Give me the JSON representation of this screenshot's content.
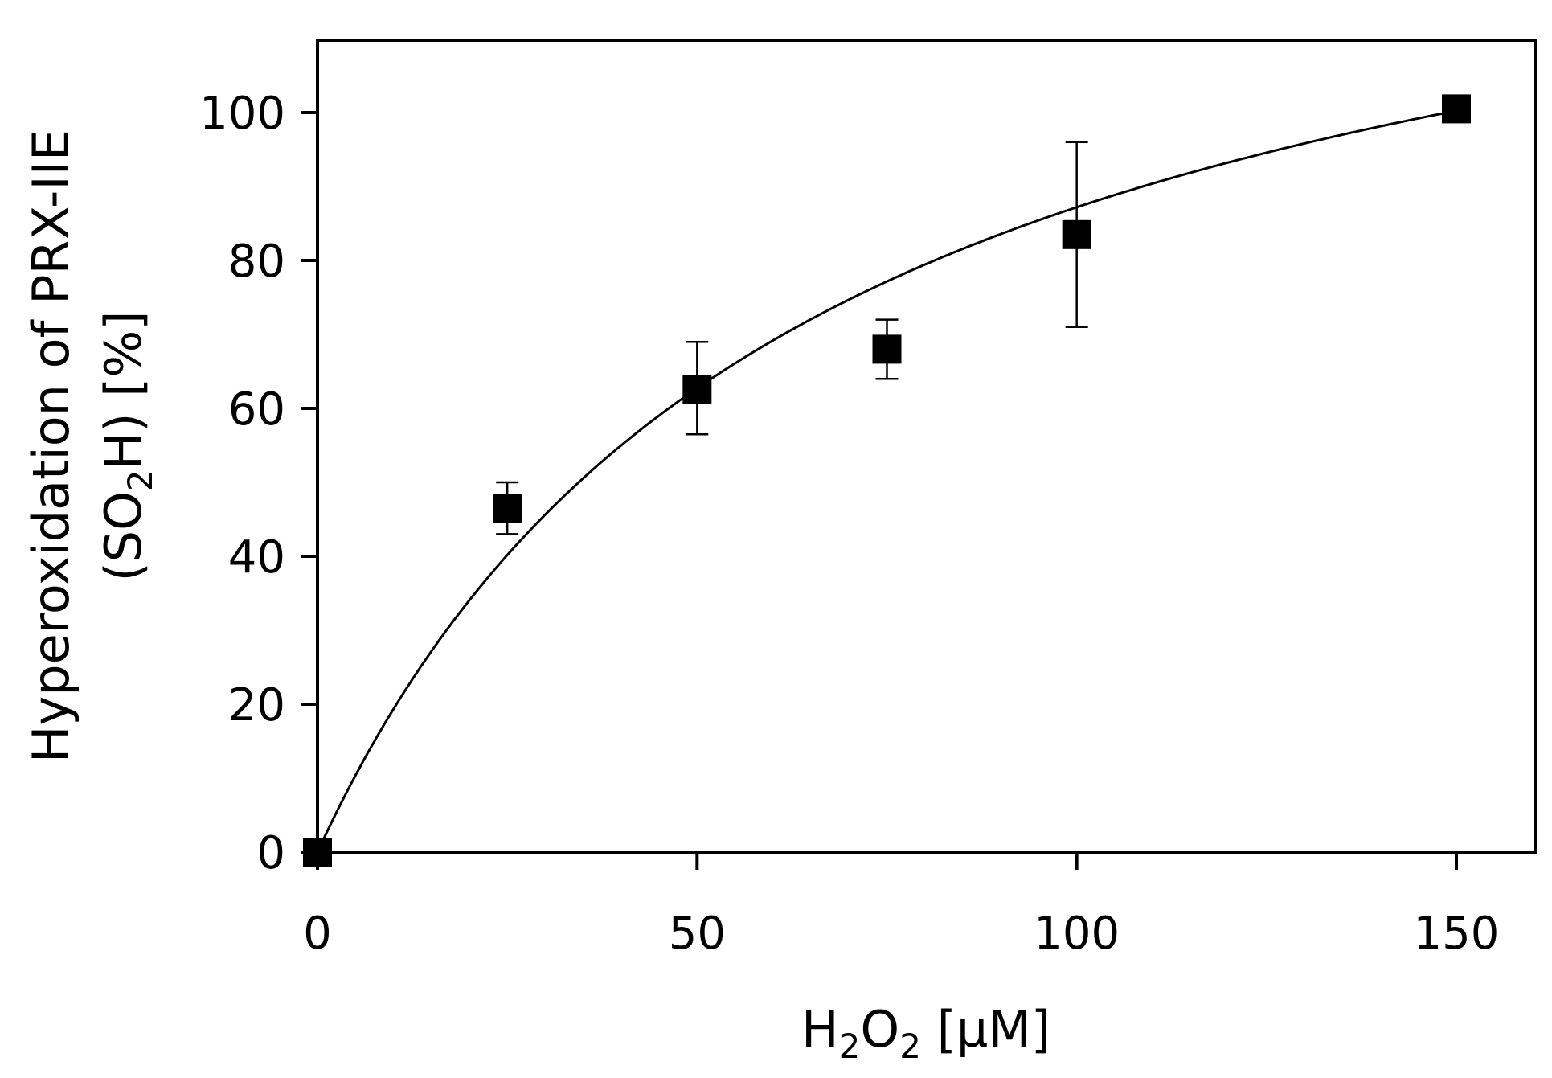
{
  "chart_data": {
    "type": "scatter",
    "title": "",
    "xlabel": {
      "base": "H",
      "sub1": "2",
      "mid": "O",
      "sub2": "2",
      "rest": " [µM]"
    },
    "ylabel": {
      "line1": "Hyperoxidation of PRX-IIE",
      "line2": {
        "pre": "(SO",
        "sub": "2",
        "post": "H) [%]"
      }
    },
    "xlim": [
      0,
      160
    ],
    "ylim": [
      0,
      110
    ],
    "xticks": [
      0,
      50,
      100,
      150
    ],
    "yticks": [
      0,
      20,
      40,
      60,
      80,
      100
    ],
    "grid": false,
    "legend": false,
    "marker": "square",
    "color": "#000000",
    "points": [
      {
        "x": 0,
        "y": 0,
        "err_low": 0,
        "err_high": 0
      },
      {
        "x": 25,
        "y": 46.5,
        "err_low": 43,
        "err_high": 50
      },
      {
        "x": 50,
        "y": 62.5,
        "err_low": 56.5,
        "err_high": 69
      },
      {
        "x": 75,
        "y": 68,
        "err_low": 64,
        "err_high": 72
      },
      {
        "x": 100,
        "y": 83.5,
        "err_low": 71,
        "err_high": 96
      },
      {
        "x": 150,
        "y": 100.5,
        "err_low": 100.5,
        "err_high": 100.5
      }
    ],
    "fit": {
      "type": "hyperbolic",
      "vmax": 143,
      "k": 64
    }
  }
}
